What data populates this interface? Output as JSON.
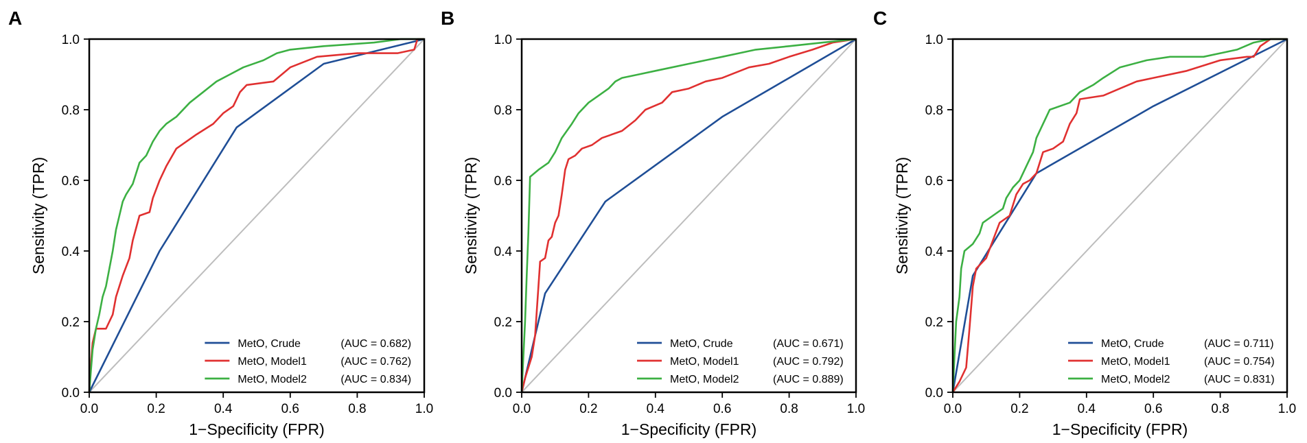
{
  "chart_data": [
    {
      "type": "line",
      "panel": "A",
      "xlabel": "1−Specificity (FPR)",
      "ylabel": "Sensitivity (TPR)",
      "xlim": [
        0,
        1
      ],
      "ylim": [
        0,
        1
      ],
      "x_ticks": [
        "0.0",
        "0.2",
        "0.4",
        "0.6",
        "0.8",
        "1.0"
      ],
      "y_ticks": [
        "0.0",
        "0.2",
        "0.4",
        "0.6",
        "0.8",
        "1.0"
      ],
      "legend_position": "bottom-right",
      "reference_line": {
        "name": "chance",
        "color": "#bdbdbd",
        "points": [
          [
            0,
            0
          ],
          [
            1,
            1
          ]
        ]
      },
      "series": [
        {
          "name": "MetO, Crude",
          "auc": "(AUC = 0.682)",
          "color": "#1f4e96",
          "points": [
            [
              0,
              0
            ],
            [
              0.21,
              0.4
            ],
            [
              0.44,
              0.75
            ],
            [
              0.7,
              0.93
            ],
            [
              1,
              1
            ]
          ]
        },
        {
          "name": "MetO, Model1",
          "auc": "(AUC = 0.762)",
          "color": "#e03030",
          "points": [
            [
              0,
              0
            ],
            [
              0.005,
              0.08
            ],
            [
              0.01,
              0.14
            ],
            [
              0.02,
              0.18
            ],
            [
              0.05,
              0.18
            ],
            [
              0.06,
              0.2
            ],
            [
              0.07,
              0.22
            ],
            [
              0.08,
              0.27
            ],
            [
              0.1,
              0.33
            ],
            [
              0.12,
              0.38
            ],
            [
              0.13,
              0.43
            ],
            [
              0.15,
              0.5
            ],
            [
              0.18,
              0.51
            ],
            [
              0.19,
              0.55
            ],
            [
              0.21,
              0.6
            ],
            [
              0.23,
              0.64
            ],
            [
              0.26,
              0.69
            ],
            [
              0.32,
              0.73
            ],
            [
              0.37,
              0.76
            ],
            [
              0.4,
              0.79
            ],
            [
              0.43,
              0.81
            ],
            [
              0.45,
              0.85
            ],
            [
              0.47,
              0.87
            ],
            [
              0.55,
              0.88
            ],
            [
              0.6,
              0.92
            ],
            [
              0.68,
              0.95
            ],
            [
              0.8,
              0.96
            ],
            [
              0.87,
              0.96
            ],
            [
              0.92,
              0.96
            ],
            [
              0.97,
              0.97
            ],
            [
              0.98,
              1.0
            ],
            [
              1,
              1
            ]
          ]
        },
        {
          "name": "MetO, Model2",
          "auc": "(AUC = 0.834)",
          "color": "#3cb043",
          "points": [
            [
              0,
              0
            ],
            [
              0.005,
              0.06
            ],
            [
              0.01,
              0.12
            ],
            [
              0.02,
              0.18
            ],
            [
              0.03,
              0.22
            ],
            [
              0.04,
              0.27
            ],
            [
              0.05,
              0.3
            ],
            [
              0.06,
              0.35
            ],
            [
              0.07,
              0.4
            ],
            [
              0.08,
              0.46
            ],
            [
              0.09,
              0.5
            ],
            [
              0.1,
              0.54
            ],
            [
              0.11,
              0.56
            ],
            [
              0.13,
              0.59
            ],
            [
              0.14,
              0.62
            ],
            [
              0.15,
              0.65
            ],
            [
              0.17,
              0.67
            ],
            [
              0.19,
              0.71
            ],
            [
              0.21,
              0.74
            ],
            [
              0.23,
              0.76
            ],
            [
              0.26,
              0.78
            ],
            [
              0.3,
              0.82
            ],
            [
              0.34,
              0.85
            ],
            [
              0.38,
              0.88
            ],
            [
              0.42,
              0.9
            ],
            [
              0.46,
              0.92
            ],
            [
              0.52,
              0.94
            ],
            [
              0.56,
              0.96
            ],
            [
              0.6,
              0.97
            ],
            [
              0.7,
              0.98
            ],
            [
              0.85,
              0.99
            ],
            [
              0.93,
              1.0
            ],
            [
              1,
              1
            ]
          ]
        }
      ]
    },
    {
      "type": "line",
      "panel": "B",
      "xlabel": "1−Specificity (FPR)",
      "ylabel": "Sensitivity (TPR)",
      "xlim": [
        0,
        1
      ],
      "ylim": [
        0,
        1
      ],
      "x_ticks": [
        "0.0",
        "0.2",
        "0.4",
        "0.6",
        "0.8",
        "1.0"
      ],
      "y_ticks": [
        "0.0",
        "0.2",
        "0.4",
        "0.6",
        "0.8",
        "1.0"
      ],
      "legend_position": "bottom-right",
      "reference_line": {
        "name": "chance",
        "color": "#bdbdbd",
        "points": [
          [
            0,
            0
          ],
          [
            1,
            1
          ]
        ]
      },
      "series": [
        {
          "name": "MetO, Crude",
          "auc": "(AUC = 0.671)",
          "color": "#1f4e96",
          "points": [
            [
              0,
              0
            ],
            [
              0.07,
              0.28
            ],
            [
              0.25,
              0.54
            ],
            [
              0.6,
              0.78
            ],
            [
              1,
              1
            ]
          ]
        },
        {
          "name": "MetO, Model1",
          "auc": "(AUC = 0.792)",
          "color": "#e03030",
          "points": [
            [
              0,
              0
            ],
            [
              0.01,
              0.04
            ],
            [
              0.02,
              0.07
            ],
            [
              0.03,
              0.1
            ],
            [
              0.04,
              0.16
            ],
            [
              0.05,
              0.3
            ],
            [
              0.055,
              0.37
            ],
            [
              0.07,
              0.38
            ],
            [
              0.08,
              0.43
            ],
            [
              0.09,
              0.44
            ],
            [
              0.1,
              0.48
            ],
            [
              0.11,
              0.5
            ],
            [
              0.12,
              0.56
            ],
            [
              0.13,
              0.63
            ],
            [
              0.14,
              0.66
            ],
            [
              0.16,
              0.67
            ],
            [
              0.18,
              0.69
            ],
            [
              0.21,
              0.7
            ],
            [
              0.24,
              0.72
            ],
            [
              0.3,
              0.74
            ],
            [
              0.34,
              0.77
            ],
            [
              0.37,
              0.8
            ],
            [
              0.42,
              0.82
            ],
            [
              0.45,
              0.85
            ],
            [
              0.5,
              0.86
            ],
            [
              0.55,
              0.88
            ],
            [
              0.6,
              0.89
            ],
            [
              0.68,
              0.92
            ],
            [
              0.74,
              0.93
            ],
            [
              0.8,
              0.95
            ],
            [
              0.87,
              0.97
            ],
            [
              0.93,
              0.99
            ],
            [
              1,
              1
            ]
          ]
        },
        {
          "name": "MetO, Model2",
          "auc": "(AUC = 0.889)",
          "color": "#3cb043",
          "points": [
            [
              0,
              0
            ],
            [
              0.005,
              0.1
            ],
            [
              0.01,
              0.2
            ],
            [
              0.015,
              0.33
            ],
            [
              0.02,
              0.45
            ],
            [
              0.025,
              0.61
            ],
            [
              0.05,
              0.63
            ],
            [
              0.08,
              0.65
            ],
            [
              0.1,
              0.68
            ],
            [
              0.12,
              0.72
            ],
            [
              0.15,
              0.76
            ],
            [
              0.17,
              0.79
            ],
            [
              0.2,
              0.82
            ],
            [
              0.23,
              0.84
            ],
            [
              0.26,
              0.86
            ],
            [
              0.28,
              0.88
            ],
            [
              0.3,
              0.89
            ],
            [
              0.35,
              0.9
            ],
            [
              0.4,
              0.91
            ],
            [
              0.45,
              0.92
            ],
            [
              0.5,
              0.93
            ],
            [
              0.55,
              0.94
            ],
            [
              0.6,
              0.95
            ],
            [
              0.65,
              0.96
            ],
            [
              0.7,
              0.97
            ],
            [
              0.8,
              0.98
            ],
            [
              0.9,
              0.99
            ],
            [
              1,
              1
            ]
          ]
        }
      ]
    },
    {
      "type": "line",
      "panel": "C",
      "xlabel": "1−Specificity (FPR)",
      "ylabel": "Sensitivity (TPR)",
      "xlim": [
        0,
        1
      ],
      "ylim": [
        0,
        1
      ],
      "x_ticks": [
        "0.0",
        "0.2",
        "0.4",
        "0.6",
        "0.8",
        "1.0"
      ],
      "y_ticks": [
        "0.0",
        "0.2",
        "0.4",
        "0.6",
        "0.8",
        "1.0"
      ],
      "legend_position": "bottom-right",
      "reference_line": {
        "name": "chance",
        "color": "#bdbdbd",
        "points": [
          [
            0,
            0
          ],
          [
            1,
            1
          ]
        ]
      },
      "series": [
        {
          "name": "MetO, Crude",
          "auc": "(AUC = 0.711)",
          "color": "#1f4e96",
          "points": [
            [
              0,
              0
            ],
            [
              0.06,
              0.33
            ],
            [
              0.25,
              0.62
            ],
            [
              0.6,
              0.81
            ],
            [
              1,
              1
            ]
          ]
        },
        {
          "name": "MetO, Model1",
          "auc": "(AUC = 0.754)",
          "color": "#e03030",
          "points": [
            [
              0,
              0
            ],
            [
              0.02,
              0.03
            ],
            [
              0.04,
              0.07
            ],
            [
              0.05,
              0.18
            ],
            [
              0.06,
              0.3
            ],
            [
              0.07,
              0.35
            ],
            [
              0.1,
              0.38
            ],
            [
              0.12,
              0.43
            ],
            [
              0.14,
              0.48
            ],
            [
              0.17,
              0.5
            ],
            [
              0.19,
              0.56
            ],
            [
              0.21,
              0.59
            ],
            [
              0.23,
              0.6
            ],
            [
              0.25,
              0.62
            ],
            [
              0.27,
              0.68
            ],
            [
              0.3,
              0.69
            ],
            [
              0.33,
              0.71
            ],
            [
              0.35,
              0.76
            ],
            [
              0.37,
              0.79
            ],
            [
              0.38,
              0.83
            ],
            [
              0.45,
              0.84
            ],
            [
              0.5,
              0.86
            ],
            [
              0.55,
              0.88
            ],
            [
              0.6,
              0.89
            ],
            [
              0.7,
              0.91
            ],
            [
              0.8,
              0.94
            ],
            [
              0.88,
              0.95
            ],
            [
              0.9,
              0.95
            ],
            [
              0.92,
              0.98
            ],
            [
              0.95,
              1.0
            ],
            [
              1,
              1
            ]
          ]
        },
        {
          "name": "MetO, Model2",
          "auc": "(AUC = 0.831)",
          "color": "#3cb043",
          "points": [
            [
              0,
              0
            ],
            [
              0.005,
              0.1
            ],
            [
              0.01,
              0.2
            ],
            [
              0.02,
              0.27
            ],
            [
              0.025,
              0.35
            ],
            [
              0.035,
              0.4
            ],
            [
              0.06,
              0.42
            ],
            [
              0.08,
              0.45
            ],
            [
              0.09,
              0.48
            ],
            [
              0.12,
              0.5
            ],
            [
              0.15,
              0.52
            ],
            [
              0.16,
              0.55
            ],
            [
              0.18,
              0.58
            ],
            [
              0.2,
              0.6
            ],
            [
              0.22,
              0.64
            ],
            [
              0.24,
              0.68
            ],
            [
              0.25,
              0.72
            ],
            [
              0.27,
              0.76
            ],
            [
              0.29,
              0.8
            ],
            [
              0.35,
              0.82
            ],
            [
              0.38,
              0.85
            ],
            [
              0.42,
              0.87
            ],
            [
              0.45,
              0.89
            ],
            [
              0.5,
              0.92
            ],
            [
              0.58,
              0.94
            ],
            [
              0.65,
              0.95
            ],
            [
              0.75,
              0.95
            ],
            [
              0.85,
              0.97
            ],
            [
              0.9,
              0.99
            ],
            [
              0.95,
              1.0
            ],
            [
              1,
              1
            ]
          ]
        }
      ]
    }
  ]
}
